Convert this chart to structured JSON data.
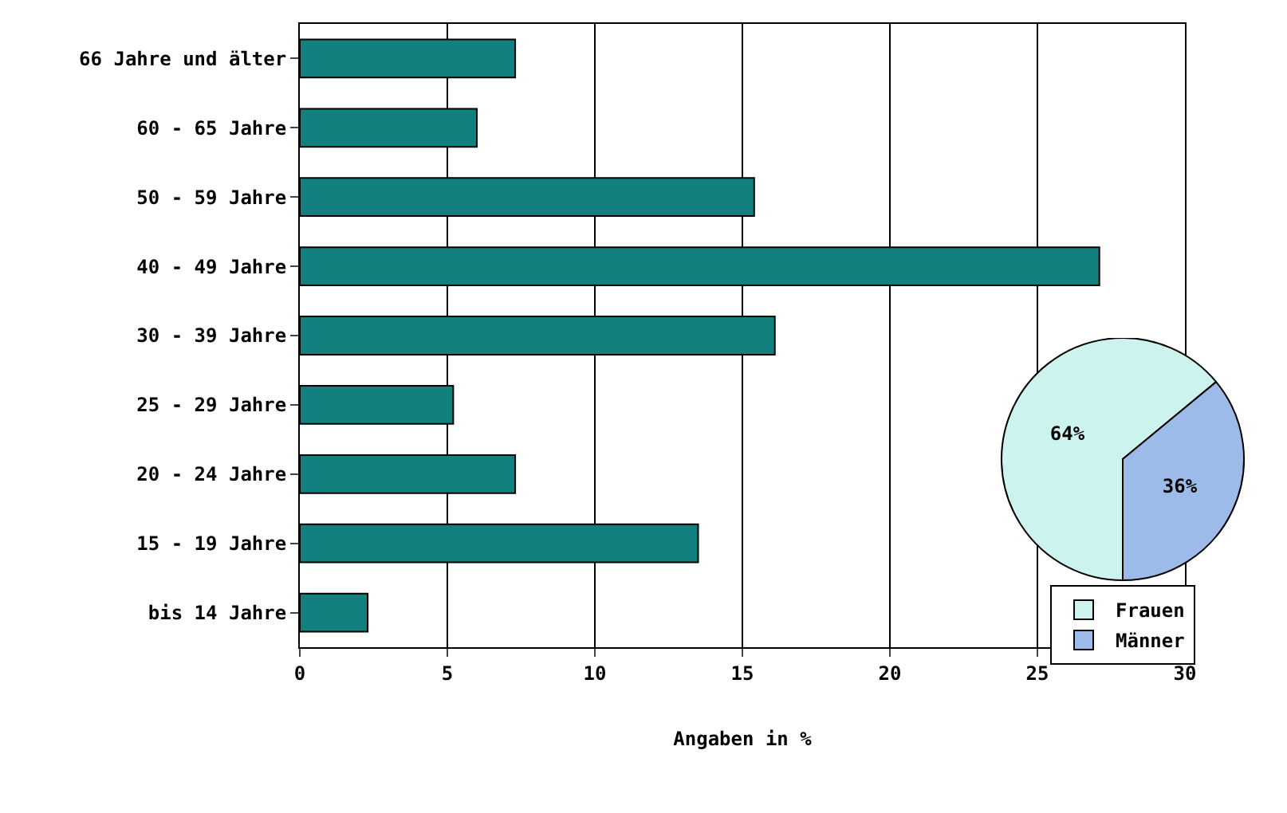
{
  "chart_data": [
    {
      "type": "bar",
      "orientation": "horizontal",
      "xlabel": "Angaben in %",
      "categories": [
        "66 Jahre und älter",
        "60 - 65 Jahre",
        "50 - 59 Jahre",
        "40 - 49 Jahre",
        "30 - 39 Jahre",
        "25 - 29 Jahre",
        "20 - 24 Jahre",
        "15 - 19 Jahre",
        "bis 14 Jahre"
      ],
      "values": [
        7.3,
        6.0,
        15.4,
        27.1,
        16.1,
        5.2,
        7.3,
        13.5,
        2.3
      ],
      "color": "#138080",
      "xlim": [
        0,
        30
      ],
      "xticks": [
        0,
        5,
        10,
        15,
        20,
        25,
        30
      ],
      "grid": "x",
      "legend": false
    },
    {
      "type": "pie",
      "categories": [
        "Frauen",
        "Männer"
      ],
      "values": [
        64,
        36
      ],
      "colors": [
        "#cdf3ef",
        "#9cbbe8"
      ],
      "value_labels": [
        "64%",
        "36%"
      ],
      "legend": "bottom"
    }
  ]
}
